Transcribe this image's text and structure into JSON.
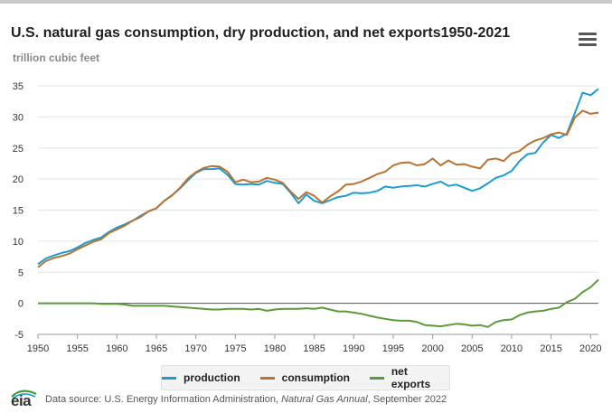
{
  "title": "U.S. natural gas consumption, dry production, and net exports1950-2021",
  "subtitle": "trillion cubic feet",
  "menu_icon": "hamburger-menu-icon",
  "legend": [
    {
      "name": "production",
      "color": "#1c9cd0"
    },
    {
      "name": "consumption",
      "color": "#b87333"
    },
    {
      "name": "net exports",
      "color": "#5a9a3a"
    }
  ],
  "footer": {
    "logo": "eia",
    "source_prefix": "Data source: U.S. Energy Information Administration,",
    "source_publication": "Natural Gas Annual",
    "source_suffix": ", September 2022"
  },
  "chart_data": {
    "type": "line",
    "title": "U.S. natural gas consumption, dry production, and net exports1950-2021",
    "ylabel": "trillion cubic feet",
    "xlabel": "",
    "xlim": [
      1950,
      2021
    ],
    "ylim": [
      -5,
      35
    ],
    "yticks": [
      -5,
      0,
      5,
      10,
      15,
      20,
      25,
      30,
      35
    ],
    "xticks": [
      1950,
      1955,
      1960,
      1965,
      1970,
      1975,
      1980,
      1985,
      1990,
      1995,
      2000,
      2005,
      2010,
      2015,
      2020
    ],
    "grid": true,
    "legend_position": "bottom",
    "x": [
      1950,
      1951,
      1952,
      1953,
      1954,
      1955,
      1956,
      1957,
      1958,
      1959,
      1960,
      1961,
      1962,
      1963,
      1964,
      1965,
      1966,
      1967,
      1968,
      1969,
      1970,
      1971,
      1972,
      1973,
      1974,
      1975,
      1976,
      1977,
      1978,
      1979,
      1980,
      1981,
      1982,
      1983,
      1984,
      1985,
      1986,
      1987,
      1988,
      1989,
      1990,
      1991,
      1992,
      1993,
      1994,
      1995,
      1996,
      1997,
      1998,
      1999,
      2000,
      2001,
      2002,
      2003,
      2004,
      2005,
      2006,
      2007,
      2008,
      2009,
      2010,
      2011,
      2012,
      2013,
      2014,
      2015,
      2016,
      2017,
      2018,
      2019,
      2020,
      2021
    ],
    "series": [
      {
        "name": "production",
        "color": "#1c9cd0",
        "values": [
          6.3,
          7.2,
          7.7,
          8.1,
          8.4,
          9.0,
          9.7,
          10.2,
          10.6,
          11.5,
          12.2,
          12.7,
          13.3,
          14.1,
          14.8,
          15.3,
          16.5,
          17.4,
          18.5,
          19.8,
          21.0,
          21.6,
          21.6,
          21.7,
          20.7,
          19.2,
          19.1,
          19.2,
          19.1,
          19.7,
          19.4,
          19.2,
          17.8,
          16.1,
          17.5,
          16.5,
          16.1,
          16.6,
          17.1,
          17.3,
          17.8,
          17.7,
          17.8,
          18.1,
          18.8,
          18.6,
          18.8,
          18.9,
          19.0,
          18.8,
          19.2,
          19.6,
          18.9,
          19.1,
          18.6,
          18.1,
          18.5,
          19.3,
          20.2,
          20.6,
          21.3,
          22.9,
          24.0,
          24.2,
          25.9,
          27.1,
          26.6,
          27.3,
          30.6,
          33.9,
          33.5,
          34.5
        ]
      },
      {
        "name": "consumption",
        "color": "#b87333",
        "values": [
          5.8,
          6.8,
          7.3,
          7.6,
          8.0,
          8.7,
          9.3,
          9.9,
          10.3,
          11.3,
          11.9,
          12.5,
          13.3,
          13.9,
          14.8,
          15.3,
          16.5,
          17.4,
          18.6,
          20.1,
          21.1,
          21.8,
          22.1,
          22.0,
          21.2,
          19.5,
          19.9,
          19.5,
          19.6,
          20.2,
          19.9,
          19.4,
          18.0,
          16.8,
          17.9,
          17.3,
          16.2,
          17.2,
          18.0,
          19.1,
          19.2,
          19.6,
          20.2,
          20.8,
          21.2,
          22.2,
          22.6,
          22.7,
          22.2,
          22.4,
          23.3,
          22.2,
          23.0,
          22.3,
          22.4,
          22.0,
          21.7,
          23.1,
          23.3,
          22.9,
          24.1,
          24.5,
          25.5,
          26.2,
          26.6,
          27.2,
          27.5,
          27.1,
          29.9,
          31.0,
          30.5,
          30.7
        ]
      },
      {
        "name": "net exports",
        "color": "#5a9a3a",
        "values": [
          0.0,
          0.0,
          0.0,
          0.0,
          0.0,
          0.0,
          0.0,
          0.0,
          -0.1,
          -0.1,
          -0.1,
          -0.2,
          -0.4,
          -0.4,
          -0.4,
          -0.4,
          -0.4,
          -0.5,
          -0.6,
          -0.7,
          -0.8,
          -0.9,
          -1.0,
          -1.0,
          -0.9,
          -0.9,
          -0.9,
          -1.0,
          -0.9,
          -1.2,
          -1.0,
          -0.9,
          -0.9,
          -0.9,
          -0.8,
          -0.9,
          -0.7,
          -1.0,
          -1.3,
          -1.3,
          -1.5,
          -1.7,
          -2.0,
          -2.3,
          -2.5,
          -2.7,
          -2.8,
          -2.8,
          -3.0,
          -3.5,
          -3.6,
          -3.7,
          -3.5,
          -3.3,
          -3.4,
          -3.6,
          -3.5,
          -3.8,
          -3.0,
          -2.7,
          -2.6,
          -1.9,
          -1.5,
          -1.3,
          -1.2,
          -0.9,
          -0.7,
          0.2,
          0.7,
          1.8,
          2.6,
          3.8
        ]
      }
    ]
  }
}
